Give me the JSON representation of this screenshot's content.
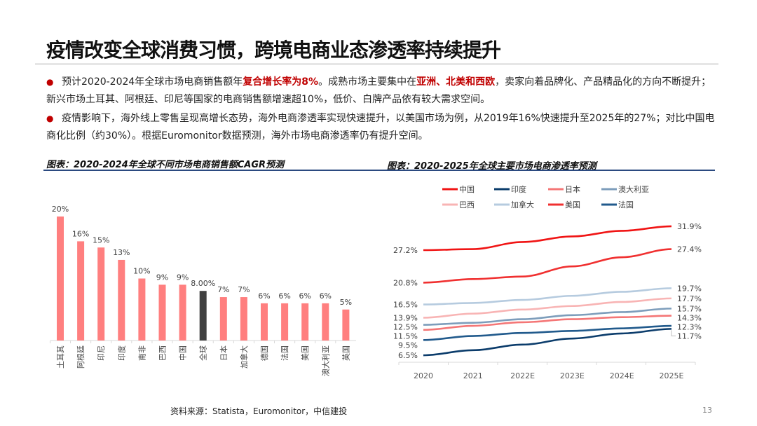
{
  "header": {
    "title": "疫情改变全球消费习惯，跨境电商业态渗透率持续提升"
  },
  "bullets": [
    {
      "parts": [
        {
          "text": "预计2020-2024年全球市场电商销售额年",
          "hl": false
        },
        {
          "text": "复合增长率为8%",
          "hl": true
        },
        {
          "text": "。成熟市场主要集中在",
          "hl": false
        },
        {
          "text": "亚洲、北美和西欧",
          "hl": true
        },
        {
          "text": "，卖家向着品牌化、产品精品化的方向不断提升；新兴市场土耳其、阿根廷、印尼等国家的电商销售额增速超10%，低价、白牌产品依有较大需求空间。",
          "hl": false
        }
      ]
    },
    {
      "parts": [
        {
          "text": "疫情影响下，海外线上零售呈现高增长态势，海外电商渗透率实现快速提升，以美国市场为例，从2019年16%快速提升至2025年的27%；对比中国电商化比例（约30%）。根据Euromonitor数据预测，海外市场电商渗透率仍有提升空间。",
          "hl": false
        }
      ]
    }
  ],
  "bullet_icon": "●",
  "captions": {
    "left": "图表：2020-2024年全球不同市场电商销售额CAGR预测",
    "right": "图表：2020-2025年全球主要市场电商渗透率预测"
  },
  "footer": {
    "source": "资料来源：Statista，Euromonitor，中信建投",
    "page": "13"
  },
  "chart_data": [
    {
      "type": "bar",
      "categories": [
        "土耳其",
        "阿根廷",
        "印尼",
        "印度",
        "南非",
        "巴西",
        "中国",
        "全球",
        "日本",
        "加拿大",
        "德国",
        "法国",
        "美国",
        "澳大利亚",
        "英国"
      ],
      "values": [
        20,
        16,
        15,
        13,
        10,
        9,
        9,
        8,
        7,
        7,
        6,
        6,
        6,
        6,
        5
      ],
      "labels": [
        "20%",
        "16%",
        "15%",
        "13%",
        "10%",
        "9%",
        "9%",
        "8.00%",
        "7%",
        "7%",
        "6%",
        "6%",
        "6%",
        "6%",
        "5%"
      ],
      "highlight_category": "全球",
      "colors": {
        "bar": "#ff7f7f",
        "highlight": "#404040"
      },
      "ylim": [
        0,
        20
      ],
      "grid": false
    },
    {
      "type": "line",
      "x": [
        "2020",
        "2021",
        "2022E",
        "2023E",
        "2024E",
        "2025E"
      ],
      "legend_position": "top",
      "grid": false,
      "series": [
        {
          "name": "中国",
          "color": "#f01414",
          "values": [
            27.2,
            27.4,
            28.8,
            29.9,
            31.0,
            31.9
          ],
          "start_label": "27.2%",
          "end_label": "31.9%"
        },
        {
          "name": "印度",
          "color": "#0b3c6b",
          "values": [
            6.5,
            7.5,
            8.6,
            9.8,
            10.8,
            11.7
          ],
          "start_label": "6.5%",
          "end_label": "11.7%"
        },
        {
          "name": "日本",
          "color": "#f47676",
          "values": [
            11.5,
            12.3,
            13.0,
            13.6,
            14.0,
            14.3
          ],
          "start_label": "11.5%",
          "end_label": "14.3%"
        },
        {
          "name": "澳大利亚",
          "color": "#7d9dbb",
          "values": [
            12.5,
            12.9,
            13.6,
            14.4,
            15.0,
            15.7
          ],
          "start_label": "12.5%",
          "end_label": "15.7%"
        },
        {
          "name": "巴西",
          "color": "#f8b4b4",
          "values": [
            13.9,
            14.7,
            15.5,
            16.2,
            17.0,
            17.7
          ],
          "start_label": "13.9%",
          "end_label": "17.7%"
        },
        {
          "name": "加拿大",
          "color": "#b6cbdf",
          "values": [
            16.5,
            16.8,
            17.4,
            18.2,
            19.0,
            19.7
          ],
          "start_label": "16.5%",
          "end_label": "19.7%"
        },
        {
          "name": "美国",
          "color": "#f03030",
          "values": [
            20.8,
            21.5,
            22.0,
            24.0,
            25.8,
            27.4
          ],
          "start_label": "20.8%",
          "end_label": "27.4%"
        },
        {
          "name": "法国",
          "color": "#215a8c",
          "values": [
            9.5,
            10.3,
            10.9,
            11.3,
            11.8,
            12.3
          ],
          "start_label": "9.5%",
          "end_label": "12.3%"
        }
      ]
    }
  ]
}
